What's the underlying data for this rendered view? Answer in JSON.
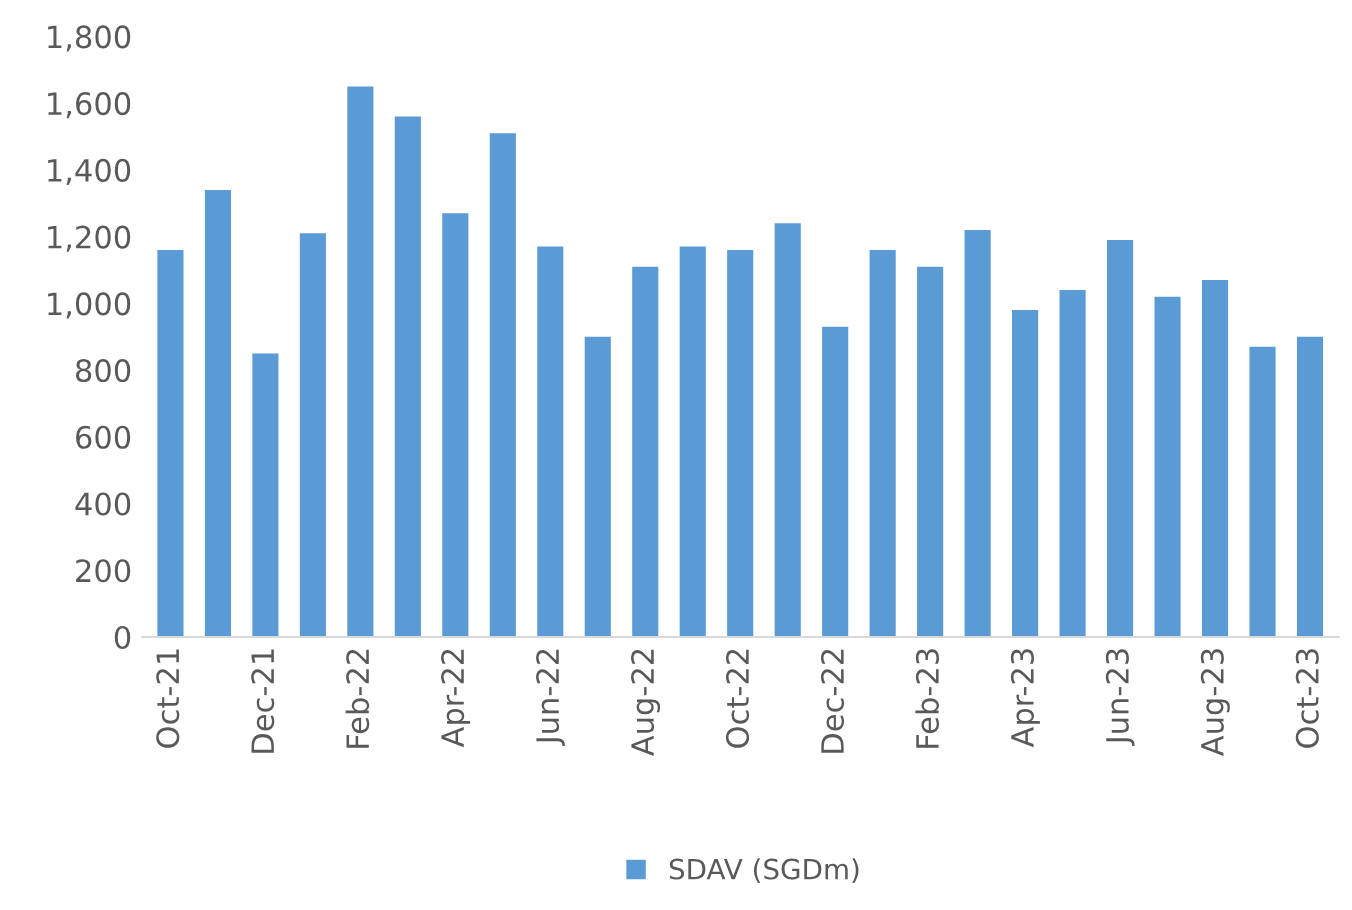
{
  "chart_data": {
    "type": "bar",
    "categories": [
      "Oct-21",
      null,
      "Dec-21",
      null,
      "Feb-22",
      null,
      "Apr-22",
      null,
      "Jun-22",
      null,
      "Aug-22",
      null,
      "Oct-22",
      null,
      "Dec-22",
      null,
      "Feb-23",
      null,
      "Apr-23",
      null,
      "Jun-23",
      null,
      "Aug-23",
      null,
      "Oct-23"
    ],
    "series": [
      {
        "name": "SDAV (SGDm)",
        "color": "#5b9bd5",
        "values": [
          1160,
          1340,
          850,
          1210,
          1650,
          1560,
          1270,
          1510,
          1170,
          900,
          1110,
          1170,
          1160,
          1240,
          930,
          1160,
          1110,
          1220,
          980,
          1040,
          1190,
          1020,
          1070,
          870,
          900
        ]
      }
    ],
    "ylim": [
      0,
      1800
    ],
    "yticks": [
      {
        "value": 0,
        "label": "0"
      },
      {
        "value": 200,
        "label": "200"
      },
      {
        "value": 400,
        "label": "400"
      },
      {
        "value": 600,
        "label": "600"
      },
      {
        "value": 800,
        "label": "800"
      },
      {
        "value": 1000,
        "label": "1,000"
      },
      {
        "value": 1200,
        "label": "1,200"
      },
      {
        "value": 1400,
        "label": "1,400"
      },
      {
        "value": 1600,
        "label": "1,600"
      },
      {
        "value": 1800,
        "label": "1,800"
      }
    ],
    "grid": false,
    "legend": "bottom"
  }
}
